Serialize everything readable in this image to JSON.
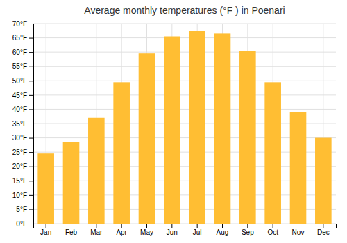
{
  "chart_data": {
    "type": "bar",
    "title": "Average monthly temperatures (°F ) in Poenari",
    "categories": [
      "Jan",
      "Feb",
      "Mar",
      "Apr",
      "May",
      "Jun",
      "Jul",
      "Aug",
      "Sep",
      "Oct",
      "Nov",
      "Dec"
    ],
    "values": [
      24.5,
      28.5,
      37,
      49.5,
      59.5,
      65.5,
      67.5,
      66.5,
      60.5,
      49.5,
      39,
      30
    ],
    "color": "#FFBE33",
    "ylim": [
      0,
      70
    ],
    "yticks": [
      {
        "value": 0,
        "label": "0°F"
      },
      {
        "value": 5,
        "label": "5°F"
      },
      {
        "value": 10,
        "label": "10°F"
      },
      {
        "value": 15,
        "label": "15°F"
      },
      {
        "value": 20,
        "label": "20°F"
      },
      {
        "value": 25,
        "label": "25°F"
      },
      {
        "value": 30,
        "label": "30°F"
      },
      {
        "value": 35,
        "label": "35°F"
      },
      {
        "value": 40,
        "label": "40°F"
      },
      {
        "value": 45,
        "label": "45°F"
      },
      {
        "value": 50,
        "label": "50°F"
      },
      {
        "value": 55,
        "label": "55°F"
      },
      {
        "value": 60,
        "label": "60°F"
      },
      {
        "value": 65,
        "label": "65°F"
      },
      {
        "value": 70,
        "label": "70°F"
      }
    ],
    "grid": true
  }
}
